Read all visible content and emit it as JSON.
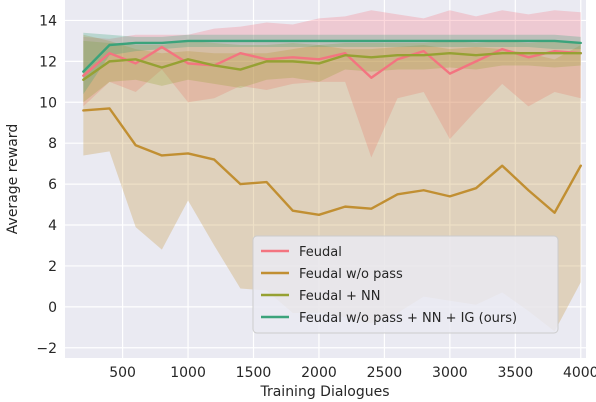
{
  "chart_data": {
    "type": "line",
    "xlabel": "Training Dialogues",
    "ylabel": "Average reward",
    "xlim": [
      60,
      4040
    ],
    "ylim": [
      -2.5,
      15
    ],
    "xticks": [
      500,
      1000,
      1500,
      2000,
      2500,
      3000,
      3500,
      4000
    ],
    "yticks": [
      -2,
      0,
      2,
      4,
      6,
      8,
      10,
      12,
      14
    ],
    "grid": true,
    "legend_position": "lower-right",
    "x": [
      200,
      400,
      600,
      800,
      1000,
      1200,
      1400,
      1600,
      1800,
      2000,
      2200,
      2400,
      2600,
      2800,
      3000,
      3200,
      3400,
      3600,
      3800,
      4000
    ],
    "series": [
      {
        "name": "Feudal",
        "color": "#f37480",
        "values": [
          11.3,
          12.4,
          11.9,
          12.7,
          11.9,
          11.8,
          12.4,
          12.1,
          12.2,
          12.1,
          12.4,
          11.2,
          12.1,
          12.5,
          11.4,
          12.0,
          12.6,
          12.2,
          12.5,
          12.4
        ],
        "band_upper": [
          13.2,
          13.1,
          13.3,
          13.3,
          13.3,
          13.6,
          13.7,
          13.9,
          13.8,
          14.1,
          14.2,
          14.5,
          14.3,
          14.1,
          14.5,
          14.2,
          14.5,
          14.3,
          14.5,
          14.4
        ],
        "band_lower": [
          9.8,
          11.0,
          10.5,
          11.6,
          10.0,
          10.2,
          10.8,
          10.6,
          10.9,
          11.0,
          11.0,
          7.3,
          10.2,
          10.5,
          8.2,
          9.6,
          10.9,
          9.8,
          10.5,
          10.2
        ]
      },
      {
        "name": "Feudal w/o pass",
        "color": "#c18f32",
        "values": [
          9.6,
          9.7,
          7.9,
          7.4,
          7.5,
          7.2,
          6.0,
          6.1,
          4.7,
          4.5,
          4.9,
          4.8,
          5.5,
          5.7,
          5.4,
          5.8,
          6.9,
          5.7,
          4.6,
          6.9
        ],
        "band_upper": [
          13.3,
          13.0,
          12.6,
          12.4,
          12.5,
          12.4,
          12.4,
          12.4,
          12.6,
          12.8,
          12.6,
          12.6,
          12.7,
          12.8,
          12.6,
          12.7,
          12.6,
          12.4,
          12.1,
          12.8
        ],
        "band_lower": [
          7.4,
          7.6,
          3.9,
          2.8,
          5.2,
          3.0,
          0.9,
          0.8,
          -0.3,
          -0.3,
          -0.5,
          -0.8,
          -0.3,
          0.5,
          0.3,
          0.1,
          0.7,
          -0.2,
          -1.2,
          1.2
        ]
      },
      {
        "name": "Feudal + NN",
        "color": "#96a133",
        "values": [
          11.1,
          12.0,
          12.1,
          11.7,
          12.1,
          11.8,
          11.6,
          12.0,
          12.0,
          11.9,
          12.3,
          12.2,
          12.3,
          12.3,
          12.4,
          12.3,
          12.4,
          12.4,
          12.4,
          12.4
        ],
        "band_upper": [
          13.0,
          12.9,
          12.8,
          12.8,
          13.0,
          12.9,
          12.8,
          12.8,
          12.9,
          12.8,
          12.9,
          12.9,
          12.9,
          12.9,
          13.0,
          12.9,
          13.0,
          12.9,
          13.0,
          12.9
        ],
        "band_lower": [
          10.0,
          11.0,
          11.1,
          10.8,
          11.1,
          10.9,
          10.7,
          11.1,
          11.2,
          11.0,
          11.6,
          11.5,
          11.6,
          11.6,
          11.7,
          11.6,
          11.8,
          11.8,
          11.7,
          11.8
        ]
      },
      {
        "name": "Feudal w/o pass + NN + IG (ours)",
        "color": "#3ba37b",
        "values": [
          11.5,
          12.8,
          12.9,
          12.9,
          13.0,
          13.0,
          13.0,
          13.0,
          13.0,
          13.0,
          13.0,
          13.0,
          13.0,
          13.0,
          13.0,
          13.0,
          13.0,
          13.0,
          13.0,
          12.9
        ],
        "band_upper": [
          13.4,
          13.3,
          13.2,
          13.2,
          13.3,
          13.3,
          13.3,
          13.3,
          13.3,
          13.3,
          13.3,
          13.3,
          13.3,
          13.3,
          13.3,
          13.3,
          13.3,
          13.3,
          13.3,
          13.2
        ],
        "band_lower": [
          10.4,
          12.3,
          12.5,
          12.6,
          12.7,
          12.7,
          12.7,
          12.7,
          12.7,
          12.7,
          12.7,
          12.7,
          12.7,
          12.7,
          12.7,
          12.7,
          12.7,
          12.7,
          12.6,
          12.6
        ]
      }
    ]
  }
}
